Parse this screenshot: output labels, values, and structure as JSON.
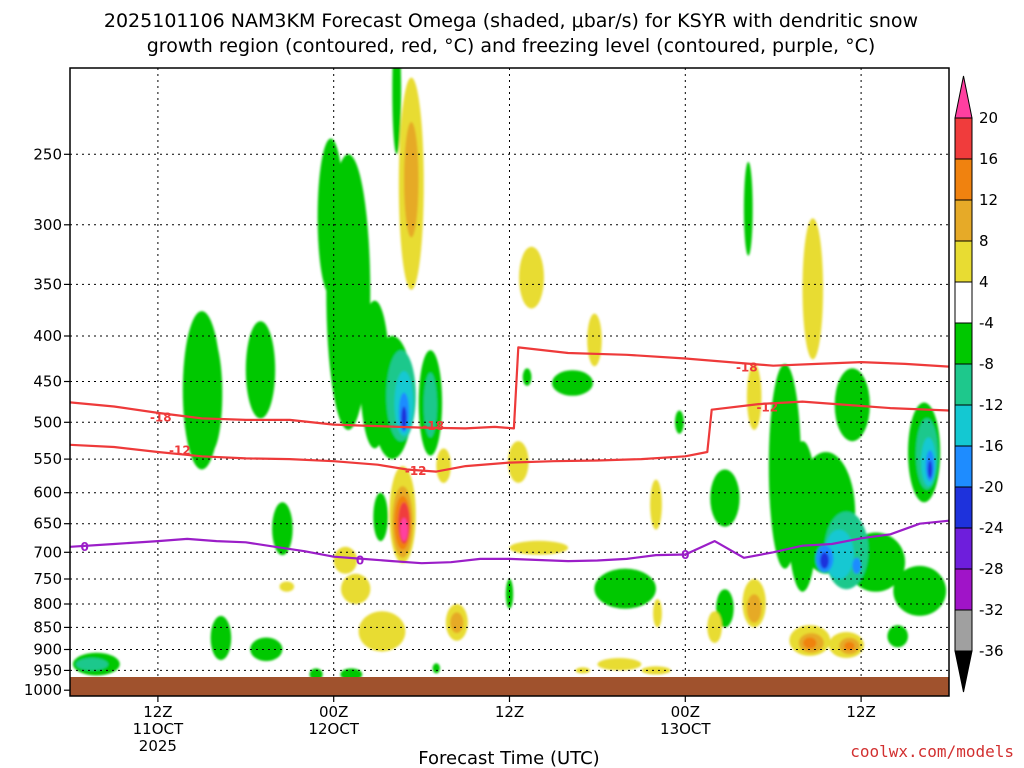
{
  "chart_data": {
    "type": "heatmap",
    "title_line1": "2025101106 NAM3KM Forecast Omega (shaded, μbar/s) for KSYR with dendritic snow",
    "title_line2": "growth region (contoured, red, °C) and freezing level (contoured, purple, °C)",
    "xlabel": "Forecast Time (UTC)",
    "credit": "coolwx.com/models",
    "x_range_hours": [
      0,
      60
    ],
    "y_range_hpa": [
      200,
      1015
    ],
    "y_ticks": [
      250,
      300,
      350,
      400,
      450,
      500,
      550,
      600,
      650,
      700,
      750,
      800,
      850,
      900,
      950,
      1000
    ],
    "x_ticks": [
      {
        "hour": 6,
        "l1": "12Z",
        "l2": "11OCT",
        "l3": "2025"
      },
      {
        "hour": 18,
        "l1": "00Z",
        "l2": "12OCT",
        "l3": ""
      },
      {
        "hour": 30,
        "l1": "12Z",
        "l2": "",
        "l3": ""
      },
      {
        "hour": 42,
        "l1": "00Z",
        "l2": "13OCT",
        "l3": ""
      },
      {
        "hour": 54,
        "l1": "12Z",
        "l2": "",
        "l3": ""
      }
    ],
    "colorbar": {
      "labels": [
        "20",
        "16",
        "12",
        "8",
        "4",
        "-4",
        "-8",
        "-12",
        "-16",
        "-20",
        "-24",
        "-28",
        "-32",
        "-36"
      ],
      "bands": [
        {
          "lo": 20,
          "hi": 24,
          "color": "#ff3fa0"
        },
        {
          "lo": 16,
          "hi": 20,
          "color": "#f03c3c"
        },
        {
          "lo": 12,
          "hi": 16,
          "color": "#f0820f"
        },
        {
          "lo": 8,
          "hi": 12,
          "color": "#e6aa28"
        },
        {
          "lo": 4,
          "hi": 8,
          "color": "#e8dc32"
        },
        {
          "lo": -4,
          "hi": 4,
          "color": "#ffffff"
        },
        {
          "lo": -8,
          "hi": -4,
          "color": "#00c800"
        },
        {
          "lo": -12,
          "hi": -8,
          "color": "#1ec88c"
        },
        {
          "lo": -16,
          "hi": -12,
          "color": "#14c8d2"
        },
        {
          "lo": -20,
          "hi": -16,
          "color": "#1e8cff"
        },
        {
          "lo": -24,
          "hi": -20,
          "color": "#1e32dc"
        },
        {
          "lo": -28,
          "hi": -24,
          "color": "#6e1edc"
        },
        {
          "lo": -32,
          "hi": -28,
          "color": "#a014c8"
        },
        {
          "lo": -36,
          "hi": -32,
          "color": "#a0a0a0"
        }
      ]
    },
    "contours": [
      {
        "name": "dgz-minus18",
        "label": "-18",
        "color": "#ee3a3a",
        "label_points": [
          {
            "x": 6.2,
            "p": 494
          },
          {
            "x": 24.8,
            "p": 505
          },
          {
            "x": 46.2,
            "p": 434
          }
        ],
        "points": [
          [
            0,
            475
          ],
          [
            3,
            480
          ],
          [
            6,
            488
          ],
          [
            9,
            495
          ],
          [
            12,
            497
          ],
          [
            15,
            497
          ],
          [
            18,
            503
          ],
          [
            21,
            505
          ],
          [
            24,
            507
          ],
          [
            27,
            508
          ],
          [
            29,
            506
          ],
          [
            30.3,
            508
          ],
          [
            30.6,
            412
          ],
          [
            34,
            418
          ],
          [
            38,
            420
          ],
          [
            42,
            424
          ],
          [
            45,
            428
          ],
          [
            48,
            432
          ],
          [
            51,
            430
          ],
          [
            54,
            428
          ],
          [
            57,
            430
          ],
          [
            60,
            433
          ]
        ]
      },
      {
        "name": "dgz-minus12",
        "label": "-12",
        "color": "#ee3a3a",
        "label_points": [
          {
            "x": 7.5,
            "p": 538
          },
          {
            "x": 23.6,
            "p": 567
          },
          {
            "x": 47.6,
            "p": 481
          }
        ],
        "points": [
          [
            0,
            530
          ],
          [
            3,
            533
          ],
          [
            6,
            540
          ],
          [
            9,
            546
          ],
          [
            12,
            549
          ],
          [
            15,
            550
          ],
          [
            18,
            553
          ],
          [
            21,
            558
          ],
          [
            23,
            565
          ],
          [
            25,
            568
          ],
          [
            27,
            560
          ],
          [
            30,
            555
          ],
          [
            33,
            553
          ],
          [
            36,
            552
          ],
          [
            39,
            550
          ],
          [
            42,
            546
          ],
          [
            43.5,
            540
          ],
          [
            43.8,
            484
          ],
          [
            47,
            477
          ],
          [
            50,
            474
          ],
          [
            53,
            478
          ],
          [
            56,
            482
          ],
          [
            60,
            485
          ]
        ]
      },
      {
        "name": "freezing-level",
        "label": "0",
        "color": "#9b1ec8",
        "label_points": [
          {
            "x": 1.0,
            "p": 690
          },
          {
            "x": 19.8,
            "p": 715
          },
          {
            "x": 42.0,
            "p": 705
          }
        ],
        "points": [
          [
            0,
            690
          ],
          [
            3,
            685
          ],
          [
            6,
            680
          ],
          [
            8,
            676
          ],
          [
            10,
            680
          ],
          [
            12,
            682
          ],
          [
            14,
            690
          ],
          [
            16,
            698
          ],
          [
            18,
            708
          ],
          [
            20,
            712
          ],
          [
            22,
            716
          ],
          [
            24,
            720
          ],
          [
            26,
            718
          ],
          [
            28,
            712
          ],
          [
            30,
            712
          ],
          [
            32,
            714
          ],
          [
            34,
            716
          ],
          [
            36,
            715
          ],
          [
            38,
            712
          ],
          [
            40,
            705
          ],
          [
            42,
            704
          ],
          [
            44,
            680
          ],
          [
            46,
            710
          ],
          [
            48,
            700
          ],
          [
            50,
            688
          ],
          [
            52,
            685
          ],
          [
            54,
            675
          ],
          [
            56,
            668
          ],
          [
            58,
            650
          ],
          [
            60,
            645
          ]
        ]
      }
    ],
    "omega_features": [
      {
        "x": 1.8,
        "w": 3.2,
        "p": 935,
        "h": 55,
        "v": -7
      },
      {
        "x": 1.5,
        "w": 2.2,
        "p": 935,
        "h": 30,
        "v": -10
      },
      {
        "x": 9.0,
        "w": 2.6,
        "p": 470,
        "h": 190,
        "v": -6
      },
      {
        "x": 9.6,
        "w": 1.6,
        "p": 470,
        "h": 140,
        "v": -6
      },
      {
        "x": 13.0,
        "w": 2.0,
        "p": 440,
        "h": 110,
        "v": -6
      },
      {
        "x": 14.5,
        "w": 1.4,
        "p": 660,
        "h": 90,
        "v": -5
      },
      {
        "x": 10.3,
        "w": 1.4,
        "p": 875,
        "h": 100,
        "v": -6
      },
      {
        "x": 13.4,
        "w": 2.2,
        "p": 900,
        "h": 55,
        "v": -6
      },
      {
        "x": 16.8,
        "w": 0.9,
        "p": 960,
        "h": 30,
        "v": -6
      },
      {
        "x": 19.2,
        "w": 1.5,
        "p": 960,
        "h": 30,
        "v": -6
      },
      {
        "x": 19.0,
        "w": 3.0,
        "p": 380,
        "h": 260,
        "v": -6
      },
      {
        "x": 17.8,
        "w": 1.8,
        "p": 300,
        "h": 120,
        "v": -5
      },
      {
        "x": 20.8,
        "w": 2.0,
        "p": 450,
        "h": 170,
        "v": -7
      },
      {
        "x": 22.0,
        "w": 2.8,
        "p": 475,
        "h": 150,
        "v": -6
      },
      {
        "x": 22.6,
        "w": 2.0,
        "p": 470,
        "h": 110,
        "v": -10
      },
      {
        "x": 22.8,
        "w": 1.3,
        "p": 478,
        "h": 80,
        "v": -14
      },
      {
        "x": 22.8,
        "w": 0.7,
        "p": 488,
        "h": 50,
        "v": -18
      },
      {
        "x": 22.8,
        "w": 0.35,
        "p": 495,
        "h": 30,
        "v": -22
      },
      {
        "x": 24.6,
        "w": 1.6,
        "p": 480,
        "h": 130,
        "v": -6
      },
      {
        "x": 24.6,
        "w": 0.9,
        "p": 480,
        "h": 80,
        "v": -10
      },
      {
        "x": 21.2,
        "w": 1.0,
        "p": 640,
        "h": 80,
        "v": -5
      },
      {
        "x": 22.3,
        "w": 0.6,
        "p": 215,
        "h": 70,
        "v": -5
      },
      {
        "x": 23.3,
        "w": 1.7,
        "p": 280,
        "h": 150,
        "v": 6
      },
      {
        "x": 23.3,
        "w": 1.0,
        "p": 270,
        "h": 80,
        "v": 10
      },
      {
        "x": 22.7,
        "w": 1.8,
        "p": 640,
        "h": 160,
        "v": 6
      },
      {
        "x": 22.7,
        "w": 1.4,
        "p": 650,
        "h": 120,
        "v": 10
      },
      {
        "x": 22.7,
        "w": 1.1,
        "p": 650,
        "h": 90,
        "v": 14
      },
      {
        "x": 22.8,
        "w": 0.8,
        "p": 650,
        "h": 70,
        "v": 18
      },
      {
        "x": 22.8,
        "w": 0.5,
        "p": 660,
        "h": 40,
        "v": 22
      },
      {
        "x": 21.3,
        "w": 3.2,
        "p": 860,
        "h": 90,
        "v": 6
      },
      {
        "x": 18.8,
        "w": 1.6,
        "p": 715,
        "h": 50,
        "v": 5
      },
      {
        "x": 19.5,
        "w": 2.0,
        "p": 770,
        "h": 60,
        "v": 5
      },
      {
        "x": 25.5,
        "w": 1.0,
        "p": 560,
        "h": 50,
        "v": 5
      },
      {
        "x": 26.4,
        "w": 1.5,
        "p": 840,
        "h": 80,
        "v": 6
      },
      {
        "x": 26.4,
        "w": 0.9,
        "p": 840,
        "h": 45,
        "v": 10
      },
      {
        "x": 14.8,
        "w": 1.0,
        "p": 765,
        "h": 20,
        "v": 5
      },
      {
        "x": 25.0,
        "w": 0.5,
        "p": 945,
        "h": 25,
        "v": -6
      },
      {
        "x": 30.0,
        "w": 0.5,
        "p": 780,
        "h": 60,
        "v": -6
      },
      {
        "x": 30.6,
        "w": 1.4,
        "p": 555,
        "h": 60,
        "v": 5
      },
      {
        "x": 31.5,
        "w": 1.7,
        "p": 345,
        "h": 55,
        "v": 5
      },
      {
        "x": 34.3,
        "w": 2.8,
        "p": 452,
        "h": 30,
        "v": -6
      },
      {
        "x": 31.2,
        "w": 0.6,
        "p": 445,
        "h": 20,
        "v": -6
      },
      {
        "x": 32.0,
        "w": 4.0,
        "p": 692,
        "h": 25,
        "v": 5
      },
      {
        "x": 35.8,
        "w": 1.0,
        "p": 405,
        "h": 55,
        "v": 5
      },
      {
        "x": 37.9,
        "w": 4.2,
        "p": 770,
        "h": 80,
        "v": -6
      },
      {
        "x": 37.5,
        "w": 3.0,
        "p": 935,
        "h": 30,
        "v": 5
      },
      {
        "x": 40.0,
        "w": 2.0,
        "p": 950,
        "h": 20,
        "v": 5
      },
      {
        "x": 35.0,
        "w": 1.0,
        "p": 950,
        "h": 15,
        "v": 5
      },
      {
        "x": 40.0,
        "w": 0.8,
        "p": 620,
        "h": 80,
        "v": 5
      },
      {
        "x": 40.1,
        "w": 0.6,
        "p": 820,
        "h": 60,
        "v": 5
      },
      {
        "x": 41.6,
        "w": 0.6,
        "p": 500,
        "h": 30,
        "v": -6
      },
      {
        "x": 44.7,
        "w": 2.0,
        "p": 610,
        "h": 90,
        "v": -5
      },
      {
        "x": 44.7,
        "w": 1.2,
        "p": 810,
        "h": 80,
        "v": -5
      },
      {
        "x": 46.3,
        "w": 0.6,
        "p": 290,
        "h": 70,
        "v": -6
      },
      {
        "x": 44.0,
        "w": 1.0,
        "p": 850,
        "h": 70,
        "v": 5
      },
      {
        "x": 46.7,
        "w": 1.0,
        "p": 470,
        "h": 80,
        "v": 5
      },
      {
        "x": 46.7,
        "w": 1.6,
        "p": 800,
        "h": 100,
        "v": 6
      },
      {
        "x": 46.7,
        "w": 1.0,
        "p": 810,
        "h": 60,
        "v": 10
      },
      {
        "x": 50.7,
        "w": 1.4,
        "p": 360,
        "h": 130,
        "v": 5
      },
      {
        "x": 48.8,
        "w": 2.2,
        "p": 580,
        "h": 300,
        "v": -6
      },
      {
        "x": 50.0,
        "w": 2.0,
        "p": 650,
        "h": 250,
        "v": -6
      },
      {
        "x": 51.6,
        "w": 4.0,
        "p": 640,
        "h": 200,
        "v": -6
      },
      {
        "x": 53.4,
        "w": 2.4,
        "p": 480,
        "h": 90,
        "v": -6
      },
      {
        "x": 55.0,
        "w": 4.0,
        "p": 720,
        "h": 110,
        "v": -6
      },
      {
        "x": 58.0,
        "w": 3.6,
        "p": 775,
        "h": 100,
        "v": -6
      },
      {
        "x": 56.5,
        "w": 1.4,
        "p": 870,
        "h": 50,
        "v": -6
      },
      {
        "x": 58.3,
        "w": 2.2,
        "p": 545,
        "h": 140,
        "v": -6
      },
      {
        "x": 58.5,
        "w": 1.5,
        "p": 545,
        "h": 100,
        "v": -10
      },
      {
        "x": 58.6,
        "w": 1.0,
        "p": 555,
        "h": 70,
        "v": -14
      },
      {
        "x": 58.7,
        "w": 0.6,
        "p": 560,
        "h": 45,
        "v": -18
      },
      {
        "x": 58.7,
        "w": 0.3,
        "p": 565,
        "h": 25,
        "v": -22
      },
      {
        "x": 53.0,
        "w": 3.0,
        "p": 700,
        "h": 140,
        "v": -10
      },
      {
        "x": 52.5,
        "w": 2.0,
        "p": 705,
        "h": 90,
        "v": -14
      },
      {
        "x": 51.5,
        "w": 1.2,
        "p": 712,
        "h": 50,
        "v": -18
      },
      {
        "x": 51.5,
        "w": 0.6,
        "p": 715,
        "h": 30,
        "v": -22
      },
      {
        "x": 53.7,
        "w": 0.6,
        "p": 725,
        "h": 30,
        "v": -18
      },
      {
        "x": 50.5,
        "w": 2.8,
        "p": 880,
        "h": 70,
        "v": 6
      },
      {
        "x": 50.6,
        "w": 1.7,
        "p": 885,
        "h": 45,
        "v": 10
      },
      {
        "x": 50.5,
        "w": 0.9,
        "p": 885,
        "h": 25,
        "v": 14
      },
      {
        "x": 53.0,
        "w": 2.4,
        "p": 890,
        "h": 60,
        "v": 6
      },
      {
        "x": 53.2,
        "w": 1.4,
        "p": 892,
        "h": 38,
        "v": 10
      },
      {
        "x": 53.2,
        "w": 0.7,
        "p": 892,
        "h": 20,
        "v": 14
      }
    ]
  }
}
